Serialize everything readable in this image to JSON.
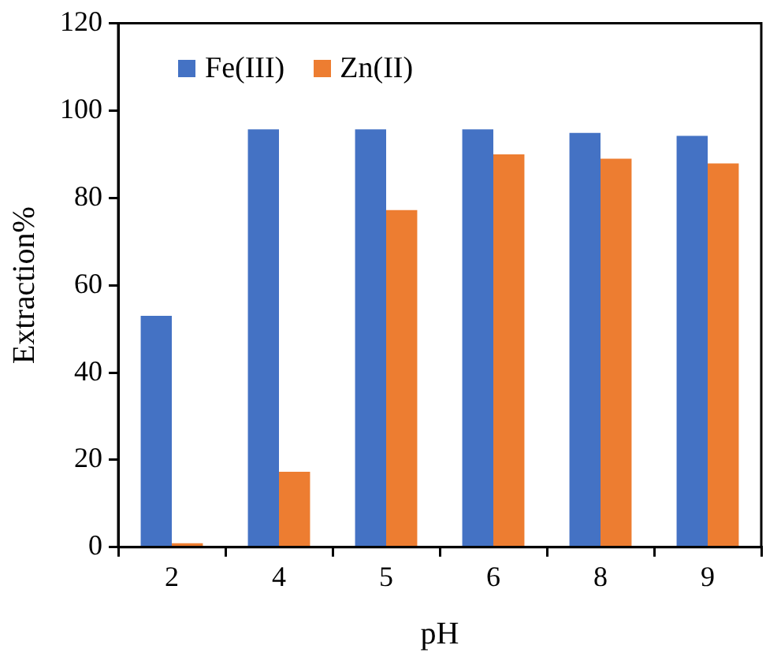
{
  "chart_data": {
    "type": "bar",
    "xlabel": "pH",
    "ylabel": "Extraction%",
    "categories": [
      "2",
      "4",
      "5",
      "6",
      "8",
      "9"
    ],
    "series": [
      {
        "name": "Fe(III)",
        "color": "#4472c4",
        "values": [
          53.0,
          95.7,
          95.7,
          95.7,
          94.9,
          94.2
        ]
      },
      {
        "name": "Zn(II)",
        "color": "#ed7d31",
        "values": [
          0.9,
          17.3,
          77.2,
          90.0,
          89.0,
          87.9
        ]
      }
    ],
    "ylim": [
      0,
      120
    ],
    "yticks": [
      0,
      20,
      40,
      60,
      80,
      100,
      120
    ],
    "grid": false,
    "legend": "top left"
  }
}
